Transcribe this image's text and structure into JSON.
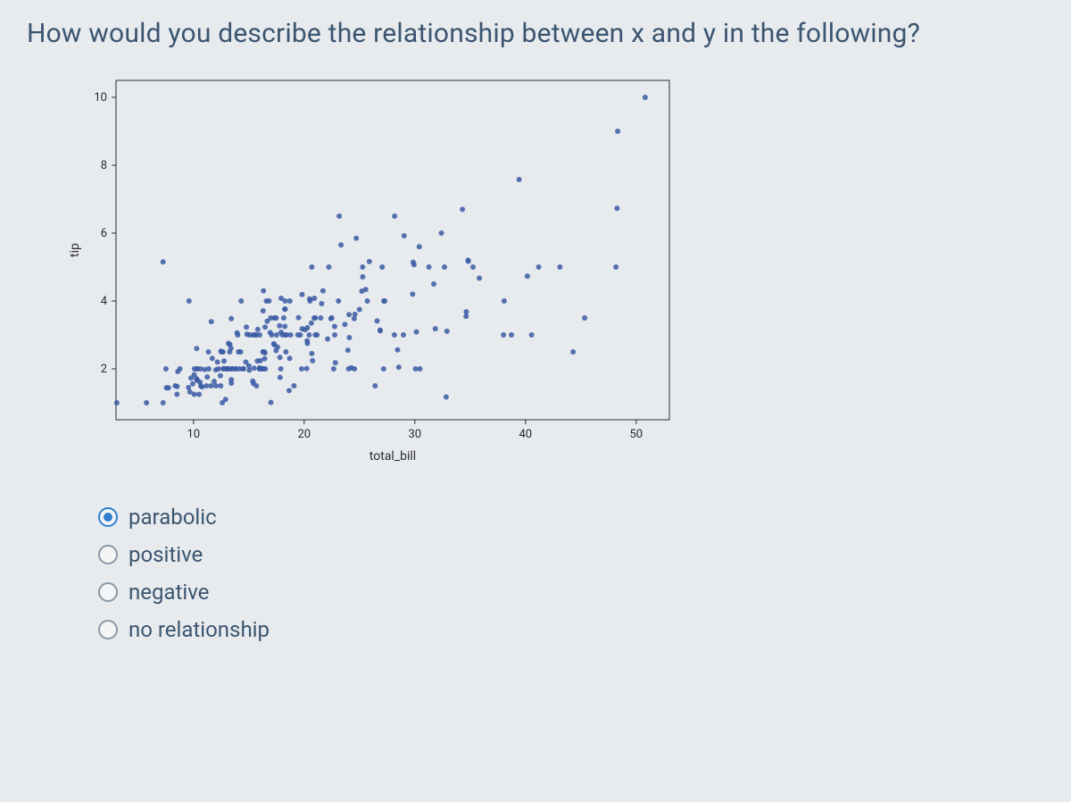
{
  "question": "How would you describe the relationship between x and y in the following?",
  "chart": {
    "type": "scatter",
    "xlabel": "total_bill",
    "ylabel": "tip",
    "xlim": [
      3,
      53
    ],
    "ylim": [
      0.5,
      10.5
    ],
    "xticks": [
      10,
      20,
      30,
      40,
      50
    ],
    "yticks": [
      2,
      4,
      6,
      8,
      10
    ],
    "tick_fontsize": 13,
    "label_fontsize": 14,
    "axis_color": "#2b2b2b",
    "tick_color": "#2b2b2b",
    "text_color": "#2b2b2b",
    "background_color": "transparent",
    "marker": {
      "size": 6,
      "color": "#3b5aa4",
      "fill_opacity": 0.85,
      "stroke": "none"
    },
    "points": [
      [
        16.99,
        1.01
      ],
      [
        10.34,
        1.66
      ],
      [
        21.01,
        3.5
      ],
      [
        23.68,
        3.31
      ],
      [
        24.59,
        3.61
      ],
      [
        25.29,
        4.71
      ],
      [
        8.77,
        2.0
      ],
      [
        26.88,
        3.12
      ],
      [
        15.04,
        1.96
      ],
      [
        14.78,
        3.23
      ],
      [
        10.27,
        1.71
      ],
      [
        35.26,
        5.0
      ],
      [
        15.42,
        1.57
      ],
      [
        18.43,
        3.0
      ],
      [
        14.83,
        3.02
      ],
      [
        21.58,
        3.92
      ],
      [
        10.33,
        1.67
      ],
      [
        16.29,
        3.71
      ],
      [
        16.97,
        3.5
      ],
      [
        20.65,
        3.35
      ],
      [
        17.92,
        4.08
      ],
      [
        20.29,
        2.75
      ],
      [
        15.77,
        2.23
      ],
      [
        39.42,
        7.58
      ],
      [
        19.82,
        3.18
      ],
      [
        17.81,
        2.34
      ],
      [
        13.37,
        2.0
      ],
      [
        12.69,
        2.0
      ],
      [
        21.7,
        4.3
      ],
      [
        19.65,
        3.0
      ],
      [
        9.55,
        1.45
      ],
      [
        18.35,
        2.5
      ],
      [
        15.06,
        3.0
      ],
      [
        20.69,
        2.45
      ],
      [
        17.78,
        3.27
      ],
      [
        24.06,
        3.6
      ],
      [
        16.31,
        2.0
      ],
      [
        16.93,
        3.07
      ],
      [
        18.69,
        2.31
      ],
      [
        31.27,
        5.0
      ],
      [
        16.04,
        2.24
      ],
      [
        17.46,
        2.54
      ],
      [
        13.94,
        3.06
      ],
      [
        9.68,
        1.32
      ],
      [
        30.4,
        5.6
      ],
      [
        18.29,
        3.0
      ],
      [
        22.23,
        5.0
      ],
      [
        32.4,
        6.0
      ],
      [
        28.55,
        2.05
      ],
      [
        18.04,
        3.0
      ],
      [
        12.54,
        2.5
      ],
      [
        10.29,
        2.6
      ],
      [
        34.81,
        5.2
      ],
      [
        9.94,
        1.56
      ],
      [
        25.56,
        4.34
      ],
      [
        19.49,
        3.51
      ],
      [
        38.01,
        3.0
      ],
      [
        26.41,
        1.5
      ],
      [
        11.24,
        1.76
      ],
      [
        48.27,
        6.73
      ],
      [
        20.29,
        3.21
      ],
      [
        13.81,
        2.0
      ],
      [
        11.02,
        1.98
      ],
      [
        18.29,
        3.76
      ],
      [
        17.59,
        2.64
      ],
      [
        20.08,
        3.15
      ],
      [
        16.45,
        2.47
      ],
      [
        3.07,
        1.0
      ],
      [
        20.23,
        2.01
      ],
      [
        15.01,
        2.09
      ],
      [
        12.02,
        1.97
      ],
      [
        17.07,
        3.0
      ],
      [
        26.86,
        3.14
      ],
      [
        25.28,
        5.0
      ],
      [
        14.73,
        2.2
      ],
      [
        10.51,
        1.25
      ],
      [
        17.92,
        3.08
      ],
      [
        27.2,
        4.0
      ],
      [
        22.76,
        3.0
      ],
      [
        17.29,
        2.71
      ],
      [
        19.44,
        3.0
      ],
      [
        16.66,
        3.4
      ],
      [
        10.07,
        1.83
      ],
      [
        32.68,
        5.0
      ],
      [
        15.98,
        2.03
      ],
      [
        34.83,
        5.17
      ],
      [
        13.03,
        2.0
      ],
      [
        18.28,
        4.0
      ],
      [
        24.71,
        5.85
      ],
      [
        21.16,
        3.0
      ],
      [
        28.97,
        3.0
      ],
      [
        22.49,
        3.5
      ],
      [
        5.75,
        1.0
      ],
      [
        16.32,
        4.3
      ],
      [
        22.75,
        3.25
      ],
      [
        40.17,
        4.73
      ],
      [
        27.28,
        4.0
      ],
      [
        12.03,
        1.5
      ],
      [
        21.01,
        3.0
      ],
      [
        12.46,
        1.5
      ],
      [
        11.35,
        2.5
      ],
      [
        15.38,
        3.0
      ],
      [
        44.3,
        2.5
      ],
      [
        22.42,
        3.48
      ],
      [
        20.92,
        4.08
      ],
      [
        15.36,
        1.64
      ],
      [
        20.49,
        4.06
      ],
      [
        25.21,
        4.29
      ],
      [
        18.24,
        3.76
      ],
      [
        14.31,
        4.0
      ],
      [
        14.0,
        3.0
      ],
      [
        7.25,
        1.0
      ],
      [
        38.07,
        4.0
      ],
      [
        23.95,
        2.55
      ],
      [
        25.71,
        4.0
      ],
      [
        17.31,
        3.5
      ],
      [
        29.93,
        5.07
      ],
      [
        10.65,
        1.5
      ],
      [
        12.43,
        1.8
      ],
      [
        24.08,
        2.92
      ],
      [
        11.69,
        2.31
      ],
      [
        13.42,
        1.68
      ],
      [
        14.26,
        2.5
      ],
      [
        15.95,
        2.0
      ],
      [
        12.48,
        2.52
      ],
      [
        29.8,
        4.2
      ],
      [
        8.52,
        1.48
      ],
      [
        14.52,
        2.0
      ],
      [
        11.38,
        2.0
      ],
      [
        22.82,
        2.18
      ],
      [
        19.08,
        1.5
      ],
      [
        20.27,
        2.83
      ],
      [
        11.17,
        1.5
      ],
      [
        12.26,
        2.0
      ],
      [
        18.26,
        3.25
      ],
      [
        8.51,
        1.25
      ],
      [
        10.33,
        2.0
      ],
      [
        14.15,
        2.0
      ],
      [
        16.0,
        2.0
      ],
      [
        13.16,
        2.75
      ],
      [
        17.47,
        3.5
      ],
      [
        34.3,
        6.7
      ],
      [
        41.19,
        5.0
      ],
      [
        27.05,
        5.0
      ],
      [
        16.43,
        2.3
      ],
      [
        8.35,
        1.5
      ],
      [
        18.64,
        1.36
      ],
      [
        11.87,
        1.63
      ],
      [
        9.78,
        1.73
      ],
      [
        7.51,
        2.0
      ],
      [
        14.07,
        2.5
      ],
      [
        13.13,
        2.0
      ],
      [
        17.26,
        2.74
      ],
      [
        24.55,
        2.0
      ],
      [
        19.77,
        2.0
      ],
      [
        29.85,
        5.14
      ],
      [
        48.17,
        5.0
      ],
      [
        25.0,
        3.75
      ],
      [
        13.39,
        2.61
      ],
      [
        16.49,
        2.0
      ],
      [
        21.5,
        3.5
      ],
      [
        12.66,
        2.5
      ],
      [
        16.21,
        2.0
      ],
      [
        13.81,
        2.0
      ],
      [
        17.51,
        3.0
      ],
      [
        24.52,
        3.48
      ],
      [
        20.76,
        2.24
      ],
      [
        31.71,
        4.5
      ],
      [
        10.59,
        1.61
      ],
      [
        10.63,
        2.0
      ],
      [
        50.81,
        10.0
      ],
      [
        15.81,
        3.16
      ],
      [
        7.25,
        5.15
      ],
      [
        31.85,
        3.18
      ],
      [
        16.82,
        4.0
      ],
      [
        32.9,
        3.11
      ],
      [
        17.89,
        2.0
      ],
      [
        14.48,
        2.0
      ],
      [
        9.6,
        4.0
      ],
      [
        34.63,
        3.55
      ],
      [
        34.65,
        3.68
      ],
      [
        23.33,
        5.65
      ],
      [
        45.35,
        3.5
      ],
      [
        23.17,
        6.5
      ],
      [
        40.55,
        3.0
      ],
      [
        20.69,
        5.0
      ],
      [
        20.9,
        3.5
      ],
      [
        30.46,
        2.0
      ],
      [
        18.15,
        3.5
      ],
      [
        23.1,
        4.0
      ],
      [
        15.69,
        1.5
      ],
      [
        19.81,
        4.19
      ],
      [
        28.44,
        2.56
      ],
      [
        15.48,
        2.02
      ],
      [
        16.58,
        4.0
      ],
      [
        7.56,
        1.44
      ],
      [
        10.34,
        2.0
      ],
      [
        43.11,
        5.0
      ],
      [
        13.0,
        2.0
      ],
      [
        13.51,
        2.0
      ],
      [
        18.71,
        4.0
      ],
      [
        12.74,
        2.01
      ],
      [
        13.0,
        2.0
      ],
      [
        16.4,
        2.5
      ],
      [
        20.53,
        4.0
      ],
      [
        16.47,
        3.23
      ],
      [
        26.59,
        3.41
      ],
      [
        38.73,
        3.0
      ],
      [
        24.27,
        2.03
      ],
      [
        12.76,
        2.23
      ],
      [
        30.06,
        2.0
      ],
      [
        25.89,
        5.16
      ],
      [
        48.33,
        9.0
      ],
      [
        13.27,
        2.5
      ],
      [
        28.17,
        6.5
      ],
      [
        12.9,
        1.1
      ],
      [
        28.15,
        3.0
      ],
      [
        11.59,
        1.5
      ],
      [
        7.74,
        1.44
      ],
      [
        30.14,
        3.09
      ],
      [
        12.16,
        2.2
      ],
      [
        13.42,
        3.48
      ],
      [
        8.58,
        1.92
      ],
      [
        15.98,
        3.0
      ],
      [
        13.42,
        1.58
      ],
      [
        16.27,
        2.5
      ],
      [
        10.09,
        2.0
      ],
      [
        20.45,
        3.0
      ],
      [
        13.28,
        2.72
      ],
      [
        22.12,
        2.88
      ],
      [
        24.01,
        2.0
      ],
      [
        15.69,
        3.0
      ],
      [
        11.61,
        3.39
      ],
      [
        10.77,
        1.47
      ],
      [
        15.53,
        3.0
      ],
      [
        10.07,
        1.25
      ],
      [
        12.6,
        1.0
      ],
      [
        32.83,
        1.17
      ],
      [
        35.83,
        4.67
      ],
      [
        29.03,
        5.92
      ],
      [
        27.18,
        2.0
      ],
      [
        22.67,
        2.0
      ],
      [
        17.82,
        1.75
      ],
      [
        18.78,
        3.0
      ]
    ]
  },
  "options": [
    {
      "id": "parabolic",
      "label": "parabolic",
      "selected": true
    },
    {
      "id": "positive",
      "label": "positive",
      "selected": false
    },
    {
      "id": "negative",
      "label": "negative",
      "selected": false
    },
    {
      "id": "no-relationship",
      "label": "no relationship",
      "selected": false
    }
  ]
}
